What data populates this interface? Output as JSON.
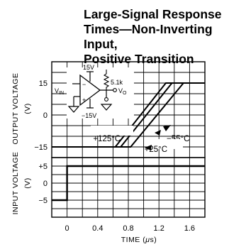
{
  "chart_data": {
    "type": "line",
    "title_lines": [
      "Large-Signal Response",
      "Times—Non-Inverting Input,",
      "Positive Transition"
    ],
    "xlabel": "TIME (μs)",
    "xlabel_parts": [
      "TIME (",
      "μ",
      "s)"
    ],
    "xticks": [
      "0",
      "0.4",
      "0.8",
      "1.2",
      "1.6"
    ],
    "xlim": [
      -0.2,
      1.8
    ],
    "upper": {
      "ylabel_lines": [
        "OUTPUT VOLTAGE",
        "(V)"
      ],
      "yticks": [
        "15",
        "0",
        "−15"
      ],
      "ylim": [
        -20,
        25
      ],
      "series": [
        {
          "name": "+125°C",
          "x": [
            -0.2,
            0.63,
            1.29,
            1.8
          ],
          "y": [
            -15,
            -15,
            15,
            15
          ]
        },
        {
          "name": "+25°C",
          "x": [
            -0.2,
            0.7,
            1.37,
            1.8
          ],
          "y": [
            -15,
            -15,
            15,
            15
          ]
        },
        {
          "name": "−55°C",
          "x": [
            -0.2,
            0.83,
            1.52,
            1.8
          ],
          "y": [
            -15,
            -15,
            15,
            15
          ]
        }
      ],
      "annotations": [
        {
          "text": "+125°C",
          "x": 0.52,
          "y": -11
        },
        {
          "text": "−55°C",
          "x": 1.45,
          "y": -11
        },
        {
          "text": "+25°C",
          "x": 1.16,
          "y": -16
        }
      ]
    },
    "lower": {
      "ylabel_lines": [
        "INPUT VOLTAGE",
        "(V)"
      ],
      "yticks": [
        "+5",
        "0",
        "−5"
      ],
      "ylim": [
        -10,
        7.5
      ],
      "series": [
        {
          "name": "",
          "x": [
            -0.2,
            0,
            0,
            1.8
          ],
          "y": [
            -5,
            -5,
            5,
            5
          ]
        }
      ]
    },
    "grid": true,
    "circuit": {
      "vplus": "15V",
      "vminus": "−15V",
      "vin": "V",
      "vin_sub": "IN",
      "vo": "V",
      "vo_sub": "O",
      "resistor": "5.1k",
      "minus": "−",
      "plus": "+"
    }
  }
}
